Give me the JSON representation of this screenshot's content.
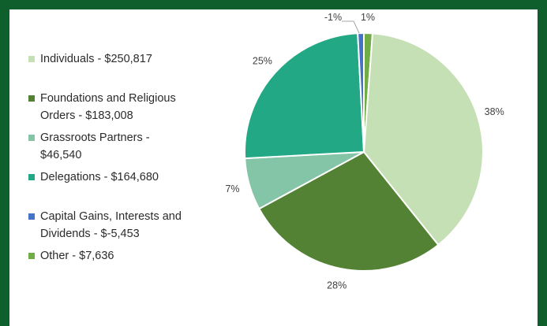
{
  "chart_data": {
    "type": "pie",
    "title": "",
    "legend_position": "left",
    "slices": [
      {
        "label": "Individuals - $250,817",
        "value": 250817,
        "percent_label": "38%",
        "color": "#c5e0b4"
      },
      {
        "label": "Foundations and Religious\nOrders - $183,008",
        "value": 183008,
        "percent_label": "28%",
        "color": "#548235"
      },
      {
        "label": "Grassroots Partners -\n$46,540",
        "value": 46540,
        "percent_label": "7%",
        "color": "#84c4a7"
      },
      {
        "label": "Delegations - $164,680",
        "value": 164680,
        "percent_label": "25%",
        "color": "#22a884"
      },
      {
        "label": "Capital Gains, Interests and\nDividends - $-5,453",
        "value": -5453,
        "percent_label": "-1%",
        "color": "#4472c4"
      },
      {
        "label": "Other - $7,636",
        "value": 7636,
        "percent_label": "1%",
        "color": "#70ad47"
      }
    ]
  }
}
